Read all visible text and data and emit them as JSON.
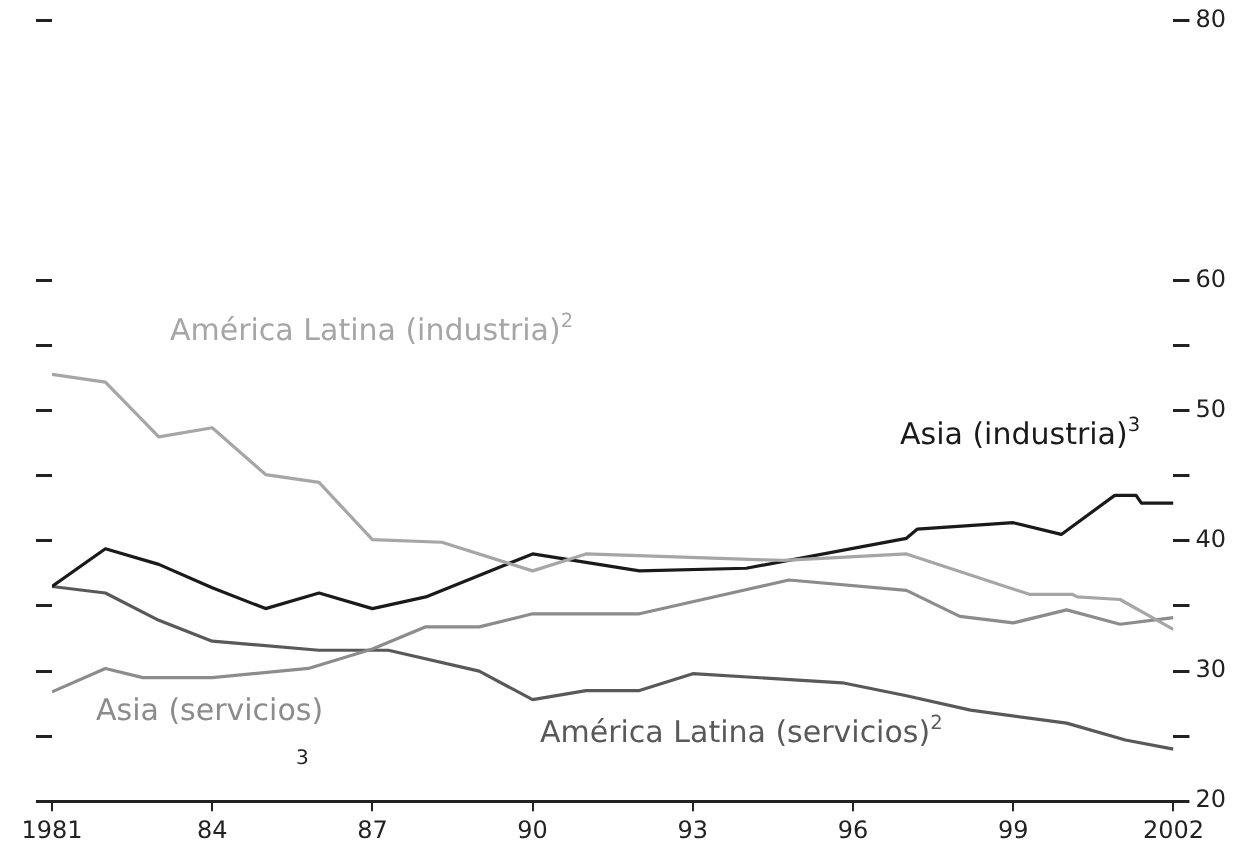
{
  "chart_data": {
    "type": "line",
    "xlim": [
      1981,
      2002
    ],
    "xticks": [
      1981,
      {
        "value": 1984,
        "label": "84"
      },
      {
        "value": 1987,
        "label": "87"
      },
      {
        "value": 1990,
        "label": "90"
      },
      {
        "value": 1993,
        "label": "93"
      },
      {
        "value": 1996,
        "label": "96"
      },
      {
        "value": 1999,
        "label": "99"
      },
      2002
    ],
    "ylim": [
      20,
      80
    ],
    "yticks": [
      20,
      {
        "value": 25,
        "label": null
      },
      30,
      {
        "value": 35,
        "label": null
      },
      40,
      {
        "value": 45,
        "label": null
      },
      50,
      {
        "value": 55,
        "label": null
      },
      60,
      80
    ],
    "tick_labels": "x2",
    "legend": false,
    "grid": false,
    "marker": "none",
    "line_style": "solid",
    "annotations": [
      "3"
    ],
    "series": [
      {
        "name": "América Latina (industria)$^{2}$",
        "color": "#a6a6a6",
        "x": [
          1981,
          1982,
          1983,
          1984,
          1985,
          1986,
          1987,
          1988.3,
          1990,
          1991,
          1994.7,
          1997,
          1999.3,
          2000.1,
          2000.2,
          2001,
          2002
        ],
        "values": [
          52.8,
          52.2,
          48.0,
          48.7,
          45.1,
          44.5,
          40.1,
          39.9,
          37.7,
          39.0,
          38.5,
          39.0,
          35.9,
          35.9,
          35.7,
          35.5,
          33.2
        ]
      },
      {
        "name": "Asia (industria)$^{3}$",
        "color": "#1a1a1a",
        "x": [
          1981,
          1982,
          1983,
          1984,
          1985,
          1986,
          1987,
          1988,
          1990,
          1992,
          1994,
          1997,
          1997.2,
          1999,
          1999.9,
          2000.9,
          2001.3,
          2001.4,
          2002
        ],
        "values": [
          36.5,
          39.4,
          38.2,
          36.4,
          34.8,
          36.0,
          34.8,
          35.7,
          39.0,
          37.7,
          37.9,
          40.2,
          40.9,
          41.4,
          40.5,
          43.5,
          43.5,
          42.9,
          42.9
        ]
      },
      {
        "name": "Asia (servicios)",
        "color": "#8c8c8c",
        "x": [
          1981,
          1982,
          1982.7,
          1984,
          1985.8,
          1987,
          1988,
          1989,
          1990,
          1992,
          1994.8,
          1997,
          1998,
          1999,
          2000,
          2001,
          2002
        ],
        "values": [
          28.4,
          30.2,
          29.5,
          29.5,
          30.2,
          31.7,
          33.4,
          33.4,
          34.4,
          34.4,
          37.0,
          36.2,
          34.2,
          33.7,
          34.7,
          33.6,
          34.1
        ]
      },
      {
        "name": "América Latina (servicios)$^{2}$",
        "color": "#595959",
        "x": [
          1981,
          1982,
          1983,
          1984,
          1986,
          1987.3,
          1989,
          1990,
          1991,
          1992,
          1993,
          1995.8,
          1997,
          1998.2,
          2000,
          2001.1,
          2002
        ],
        "values": [
          36.5,
          36.0,
          33.9,
          32.3,
          31.6,
          31.6,
          30.0,
          27.8,
          28.5,
          28.5,
          29.8,
          29.1,
          28.1,
          27.0,
          26.0,
          24.7,
          24.0
        ]
      }
    ]
  }
}
